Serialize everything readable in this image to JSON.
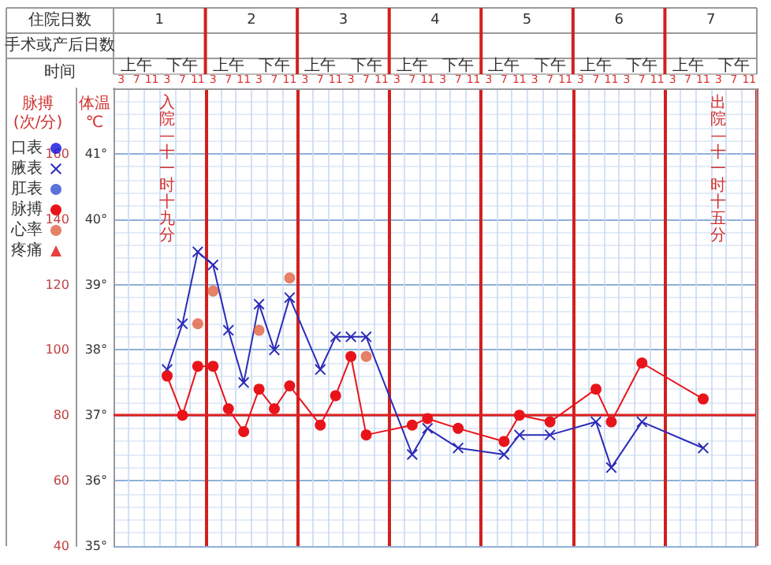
{
  "chart_data": {
    "type": "line",
    "categories": [
      "3",
      "7",
      "11",
      "3",
      "7",
      "11",
      "3",
      "7",
      "11",
      "3",
      "7",
      "11",
      "3",
      "7",
      "11",
      "3",
      "7",
      "11",
      "3",
      "7",
      "11",
      "3",
      "7",
      "11",
      "3",
      "7",
      "11",
      "3",
      "7",
      "11",
      "3",
      "7",
      "11",
      "3",
      "7",
      "11",
      "3",
      "7",
      "11",
      "3",
      "7",
      "11"
    ],
    "series": [
      {
        "name": "口表",
        "type": "scatter",
        "color": "#1010e0",
        "marker": "circle",
        "axis": "y2",
        "values": [
          null,
          null,
          null,
          null,
          null,
          null,
          null,
          null,
          null,
          null,
          null,
          null,
          null,
          null,
          null,
          null,
          null,
          null,
          null,
          null,
          null,
          null,
          null,
          null,
          null,
          null,
          null,
          null,
          null,
          null,
          null,
          null,
          null,
          null,
          null,
          null,
          null,
          null,
          null,
          null,
          null,
          null
        ]
      },
      {
        "name": "腋表",
        "color": "#2b2bb8",
        "marker": "cross",
        "axis": "y2",
        "values": [
          null,
          null,
          null,
          37.7,
          38.4,
          39.5,
          39.3,
          38.3,
          37.5,
          38.7,
          38.0,
          38.8,
          null,
          37.7,
          38.2,
          38.2,
          38.2,
          null,
          null,
          36.4,
          36.8,
          null,
          36.5,
          null,
          null,
          36.4,
          36.7,
          null,
          36.7,
          null,
          null,
          36.9,
          36.2,
          null,
          36.9,
          null,
          null,
          null,
          36.5,
          null,
          null,
          null
        ]
      },
      {
        "name": "肛表",
        "type": "scatter",
        "color": "#3050d0",
        "marker": "circle",
        "axis": "y2",
        "values": [
          null,
          null,
          null,
          null,
          null,
          null,
          null,
          null,
          null,
          null,
          null,
          null,
          null,
          null,
          null,
          null,
          null,
          null,
          null,
          null,
          null,
          null,
          null,
          null,
          null,
          null,
          null,
          null,
          null,
          null,
          null,
          null,
          null,
          null,
          null,
          null,
          null,
          null,
          null,
          null,
          null,
          null
        ]
      },
      {
        "name": "脉搏",
        "color": "#e8141a",
        "marker": "circle",
        "axis": "y",
        "values": [
          null,
          null,
          null,
          92,
          80,
          95,
          95,
          82,
          75,
          88,
          82,
          89,
          null,
          77,
          86,
          98,
          74,
          null,
          null,
          77,
          79,
          null,
          76,
          null,
          null,
          72,
          80,
          null,
          78,
          null,
          null,
          88,
          78,
          null,
          96,
          null,
          null,
          null,
          85,
          null,
          null,
          null
        ]
      },
      {
        "name": "心率",
        "type": "scatter",
        "color": "#e06040",
        "marker": "circle",
        "axis": "y",
        "values": [
          null,
          null,
          null,
          null,
          null,
          108,
          118,
          null,
          null,
          106,
          null,
          122,
          null,
          null,
          null,
          null,
          98,
          null,
          null,
          null,
          null,
          null,
          null,
          null,
          null,
          null,
          null,
          null,
          null,
          null,
          null,
          null,
          null,
          null,
          null,
          null,
          null,
          null,
          null,
          null,
          null,
          null
        ]
      },
      {
        "name": "疼痛",
        "type": "scatter",
        "color": "#e01010",
        "marker": "triangle",
        "axis": "y",
        "values": [
          null,
          null,
          null,
          null,
          null,
          null,
          null,
          null,
          null,
          null,
          null,
          null,
          null,
          null,
          null,
          null,
          null,
          null,
          null,
          null,
          null,
          null,
          null,
          null,
          null,
          null,
          null,
          null,
          null,
          null,
          null,
          null,
          null,
          null,
          null,
          null,
          null,
          null,
          null,
          null,
          null,
          null
        ]
      }
    ],
    "ylabel": "脉搏\n(次/分)",
    "y2label": "体温\n℃",
    "ylim": [
      40,
      180
    ],
    "yticks": [
      40,
      60,
      80,
      100,
      120,
      140,
      160
    ],
    "y2lim": [
      35,
      42
    ],
    "y2ticks": [
      {
        "value": 35,
        "label": "35°"
      },
      {
        "value": 36,
        "label": "36°"
      },
      {
        "value": 37,
        "label": "37°"
      },
      {
        "value": 38,
        "label": "38°"
      },
      {
        "value": 39,
        "label": "39°"
      },
      {
        "value": 40,
        "label": "40°"
      },
      {
        "value": 41,
        "label": "41°"
      }
    ],
    "ref_lines": [
      {
        "axis": "y2",
        "value": 37,
        "color": "#e02020"
      }
    ],
    "grid": true,
    "legend": "left",
    "line_style": "solid",
    "annotations": [
      "住院日数",
      "手术或产后日数",
      "时间",
      "1",
      "2",
      "3",
      "4",
      "5",
      "6",
      "7",
      "上午",
      "下午",
      "上午",
      "下午",
      "上午",
      "下午",
      "上午",
      "下午",
      "上午",
      "下午",
      "上午",
      "下午",
      "上午",
      "下午",
      "入院—十一时十九分",
      "出院—十一时十五分"
    ]
  }
}
